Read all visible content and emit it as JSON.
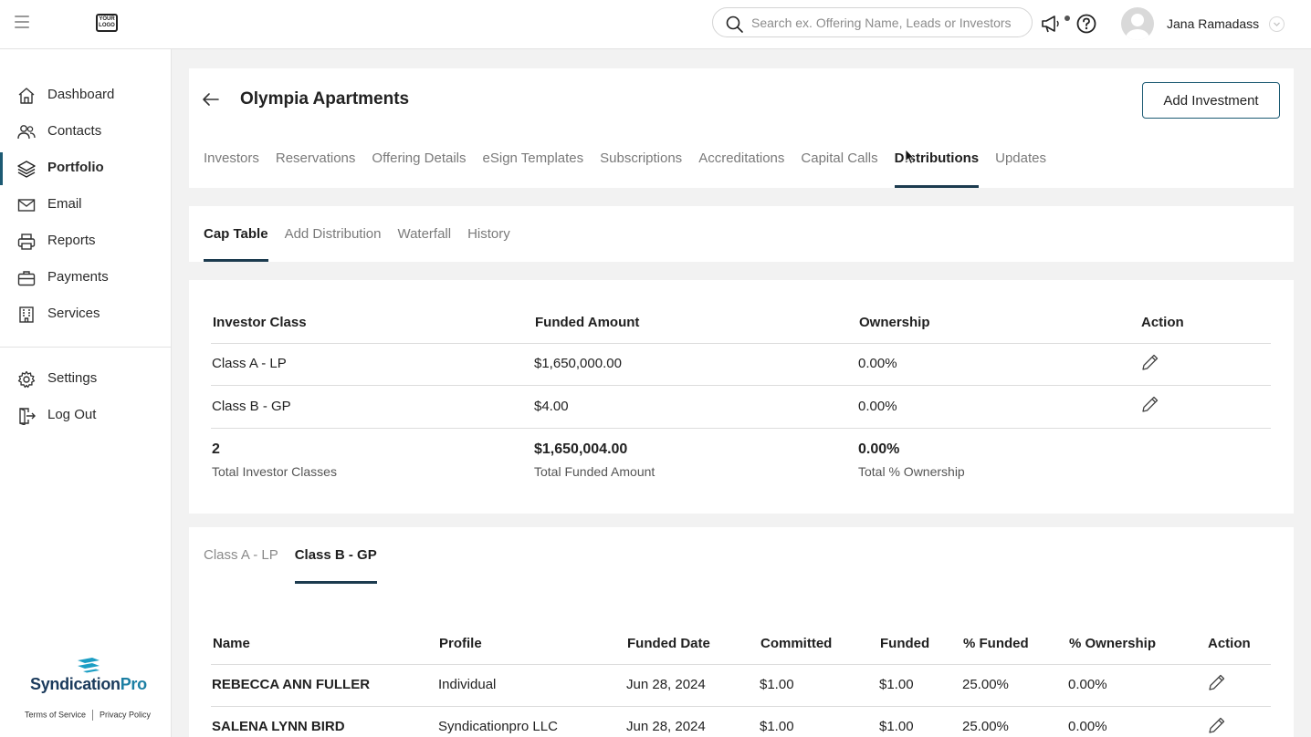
{
  "header": {
    "logo_text": "YOUR LOGO",
    "search_placeholder": "Search ex. Offering Name, Leads or Investors",
    "user_name": "Jana Ramadass"
  },
  "sidebar": {
    "items": [
      {
        "label": "Dashboard",
        "icon": "home-icon"
      },
      {
        "label": "Contacts",
        "icon": "users-icon"
      },
      {
        "label": "Portfolio",
        "icon": "layers-icon",
        "active": true
      },
      {
        "label": "Email",
        "icon": "mail-icon"
      },
      {
        "label": "Reports",
        "icon": "printer-icon"
      },
      {
        "label": "Payments",
        "icon": "briefcase-icon"
      },
      {
        "label": "Services",
        "icon": "building-icon"
      }
    ],
    "bottom_items": [
      {
        "label": "Settings",
        "icon": "gear-icon"
      },
      {
        "label": "Log Out",
        "icon": "logout-icon"
      }
    ],
    "brand_prefix": "Syndication",
    "brand_suffix": "Pro",
    "terms": "Terms of Service",
    "privacy": "Privacy Policy"
  },
  "page": {
    "title": "Olympia Apartments",
    "add_button": "Add Investment",
    "tabs": [
      "Investors",
      "Reservations",
      "Offering Details",
      "eSign Templates",
      "Subscriptions",
      "Accreditations",
      "Capital Calls",
      "Distributions",
      "Updates"
    ],
    "active_tab": "Distributions",
    "subtabs": [
      "Cap Table",
      "Add Distribution",
      "Waterfall",
      "History"
    ],
    "active_subtab": "Cap Table"
  },
  "cap_table": {
    "headers": [
      "Investor Class",
      "Funded Amount",
      "Ownership",
      "Action"
    ],
    "rows": [
      {
        "class": "Class A - LP",
        "funded": "$1,650,000.00",
        "ownership": "0.00%"
      },
      {
        "class": "Class B - GP",
        "funded": "$4.00",
        "ownership": "0.00%"
      }
    ],
    "totals": {
      "classes": "2",
      "classes_label": "Total Investor Classes",
      "funded": "$1,650,004.00",
      "funded_label": "Total Funded Amount",
      "ownership": "0.00%",
      "ownership_label": "Total % Ownership"
    }
  },
  "investors": {
    "class_tabs": [
      "Class A - LP",
      "Class B - GP"
    ],
    "active_class": "Class B - GP",
    "headers": [
      "Name",
      "Profile",
      "Funded Date",
      "Committed",
      "Funded",
      "% Funded",
      "% Ownership",
      "Action"
    ],
    "rows": [
      {
        "name": "REBECCA ANN FULLER",
        "profile": "Individual",
        "date": "Jun 28, 2024",
        "committed": "$1.00",
        "funded": "$1.00",
        "pct_funded": "25.00%",
        "pct_ownership": "0.00%"
      },
      {
        "name": "SALENA LYNN BIRD",
        "profile": "Syndicationpro LLC",
        "date": "Jun 28, 2024",
        "committed": "$1.00",
        "funded": "$1.00",
        "pct_funded": "25.00%",
        "pct_ownership": "0.00%"
      }
    ]
  }
}
